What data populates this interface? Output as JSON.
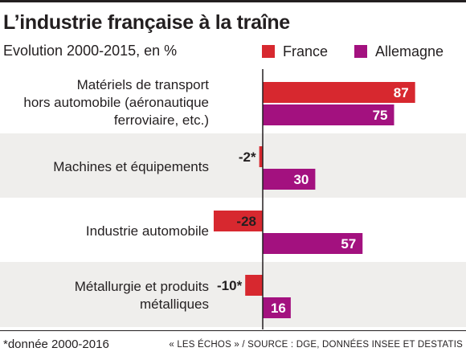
{
  "title": "L’industrie française à la traîne",
  "subtitle": "Evolution 2000-2015, en %",
  "legend": [
    {
      "name": "France",
      "color": "#d7282f"
    },
    {
      "name": "Allemagne",
      "color": "#a3117f"
    }
  ],
  "footnote": "*donnée 2000-2016",
  "source": "« LES ÉCHOS » / SOURCE : DGE, DONNÉES INSEE ET DESTATIS",
  "chart_data": {
    "type": "bar",
    "orientation": "horizontal",
    "categories": [
      [
        "Matériels de transport",
        "hors automobile (aéronautique",
        "ferroviaire, etc.)"
      ],
      [
        "Machines et équipements"
      ],
      [
        "Industrie automobile"
      ],
      [
        "Métallurgie et produits",
        "métalliques"
      ]
    ],
    "series": [
      {
        "name": "France",
        "color": "#d7282f",
        "values": [
          87,
          -2,
          -28,
          -10
        ],
        "labels": [
          "87",
          "-2*",
          "-28",
          "-10*"
        ]
      },
      {
        "name": "Allemagne",
        "color": "#a3117f",
        "values": [
          75,
          30,
          57,
          16
        ],
        "labels": [
          "75",
          "30",
          "57",
          "16"
        ]
      }
    ],
    "axis_value_at_zero": 0,
    "legend_position": "top-right"
  }
}
